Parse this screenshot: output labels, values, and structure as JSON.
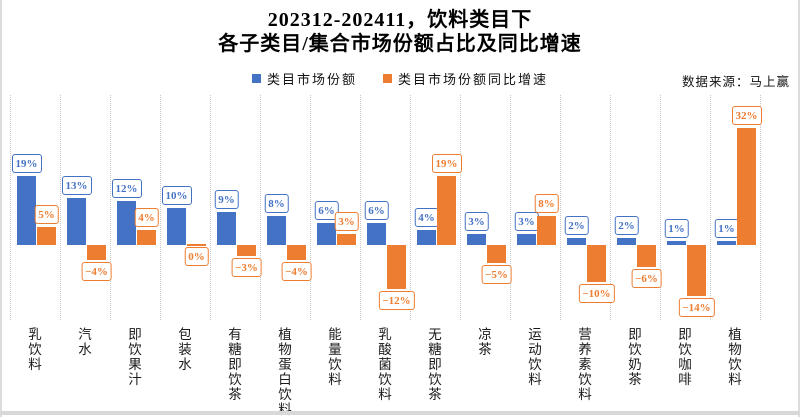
{
  "header": {
    "title_line1": "202312-202411，饮料类目下",
    "title_line2": "各子类目/集合市场份额占比及同比增速",
    "source_note": "数据来源：马上赢"
  },
  "legend": {
    "items": [
      {
        "label": "类目市场份额",
        "color": "#4472C4"
      },
      {
        "label": "类目市场份额同比增速",
        "color": "#ED7D31"
      }
    ]
  },
  "colors": {
    "share": "#4472C4",
    "growth": "#ED7D31",
    "gridline": "#c6c6c6",
    "edge": "#dcdcdc"
  },
  "chart_data": {
    "type": "bar",
    "title": "202312-202411，饮料类目下 各子类目/集合市场份额占比及同比增速",
    "categories": [
      "乳饮料",
      "汽水",
      "即饮果汁",
      "包装水",
      "有糖即饮茶",
      "植物蛋白饮料",
      "能量饮料",
      "乳酸菌饮料",
      "无糖即饮茶",
      "凉茶",
      "运动饮料",
      "营养素饮料",
      "即饮奶茶",
      "即饮咖啡",
      "植物饮料"
    ],
    "series": [
      {
        "name": "类目市场份额",
        "color": "#4472C4",
        "values": [
          19,
          13,
          12,
          10,
          9,
          8,
          6,
          6,
          4,
          3,
          3,
          2,
          2,
          1,
          1
        ]
      },
      {
        "name": "类目市场份额同比增速",
        "color": "#ED7D31",
        "values": [
          5,
          -4,
          4,
          0,
          -3,
          -4,
          3,
          -12,
          19,
          -5,
          8,
          -10,
          -6,
          -14,
          32
        ]
      }
    ],
    "unit": "%",
    "value_labels": true,
    "grid": "vertical-dotted",
    "legend_position": "top-center",
    "ylim": [
      -21,
      42
    ]
  }
}
